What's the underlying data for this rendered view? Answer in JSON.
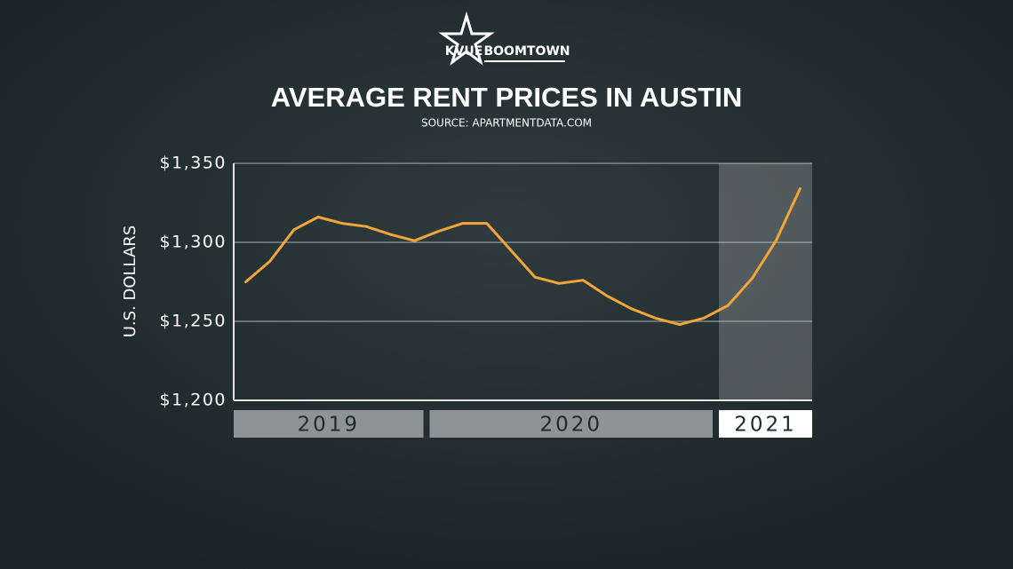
{
  "logo": {
    "left": "KVUE",
    "right": "BOOMTOWN"
  },
  "chart_data": {
    "type": "line",
    "title": "AVERAGE RENT PRICES IN AUSTIN",
    "subtitle": "SOURCE: APARTMENTDATA.COM",
    "y_label": "U.S. DOLLARS",
    "categories": [
      null,
      null,
      null,
      null,
      null,
      null,
      null,
      null,
      null,
      null,
      null,
      null,
      null,
      null,
      null,
      null,
      null,
      null,
      null,
      null,
      null,
      null,
      null,
      null
    ],
    "values": [
      1275,
      1288,
      1308,
      1316,
      1312,
      1310,
      1305,
      1301,
      1307,
      1312,
      1312,
      1295,
      1278,
      1274,
      1276,
      1266,
      1258,
      1252,
      1248,
      1252,
      1260,
      1277,
      1301,
      1334
    ],
    "year_labels": [
      "2019",
      "2020",
      "2021"
    ],
    "color": "#f2a63a",
    "ylim": [
      1200,
      1350
    ],
    "yticks": [
      {
        "value": 1200,
        "label": "$1,200"
      },
      {
        "value": 1250,
        "label": "$1,250"
      },
      {
        "value": 1300,
        "label": "$1,300"
      },
      {
        "value": 1350,
        "label": "$1,350"
      }
    ],
    "grid": true
  }
}
